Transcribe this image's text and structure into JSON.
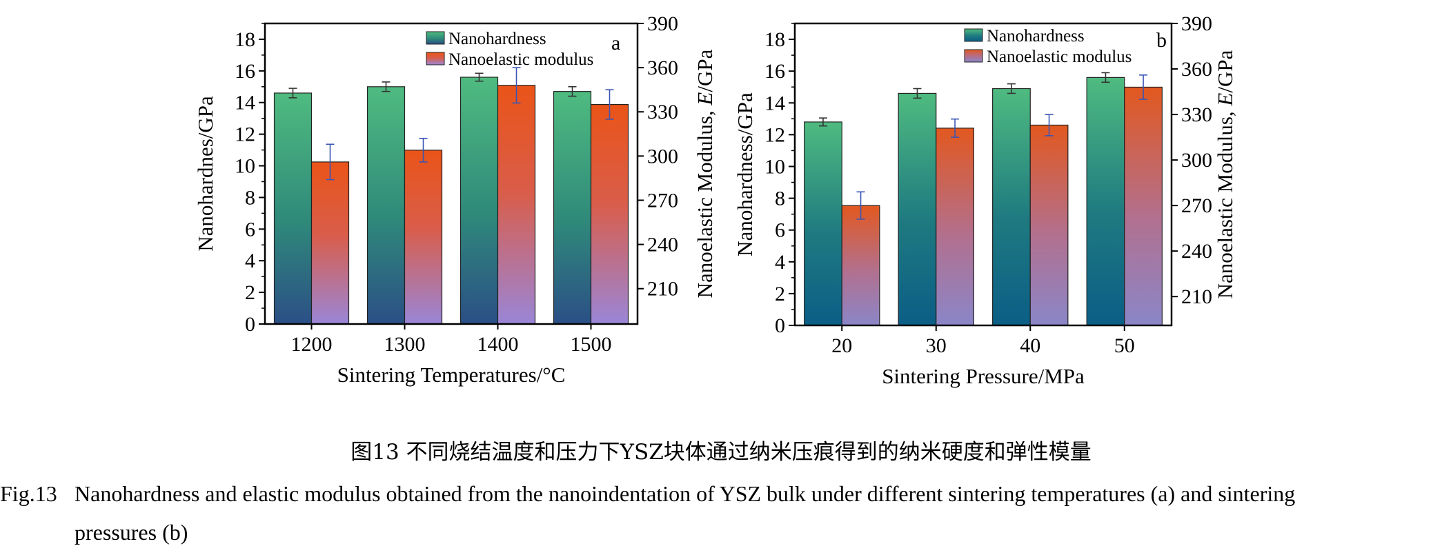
{
  "chart_data": [
    {
      "type": "bar",
      "panel_label": "a",
      "xlabel": "Sintering Temperatures/°C",
      "ylabel_left": "Nanohardnes/GPa",
      "ylabel_right": "Nanoelastic Modulus, E/GPa",
      "categories": [
        "1200",
        "1300",
        "1400",
        "1500"
      ],
      "ylim_left": [
        0,
        19
      ],
      "ylim_right": [
        186,
        390
      ],
      "left_ticks": [
        0,
        2,
        4,
        6,
        8,
        10,
        12,
        14,
        16,
        18
      ],
      "right_ticks": [
        210,
        240,
        270,
        300,
        330,
        360,
        390
      ],
      "series": [
        {
          "name": "Nanohardness",
          "axis": "left",
          "values": [
            14.6,
            15.0,
            15.6,
            14.7
          ],
          "errors": [
            0.3,
            0.3,
            0.25,
            0.3
          ]
        },
        {
          "name": "Nanoelastic modulus",
          "axis": "right",
          "values": [
            296,
            304,
            348,
            335
          ],
          "errors": [
            12,
            8,
            12,
            10
          ]
        }
      ],
      "legend_position": "top-right"
    },
    {
      "type": "bar",
      "panel_label": "b",
      "xlabel": "Sintering Pressure/MPa",
      "ylabel_left": "Nanohardness/GPa",
      "ylabel_right": "Nanoelastic Modulus, E/GPa",
      "categories": [
        "20",
        "30",
        "40",
        "50"
      ],
      "ylim_left": [
        0,
        19
      ],
      "ylim_right": [
        191,
        390
      ],
      "left_ticks": [
        0,
        2,
        4,
        6,
        8,
        10,
        12,
        14,
        16,
        18
      ],
      "right_ticks": [
        210,
        240,
        270,
        300,
        330,
        360,
        390
      ],
      "series": [
        {
          "name": "Nanohardness",
          "axis": "left",
          "values": [
            12.8,
            14.6,
            14.9,
            15.6
          ],
          "errors": [
            0.25,
            0.3,
            0.3,
            0.3
          ]
        },
        {
          "name": "Nanoelastic modulus",
          "axis": "right",
          "values": [
            270,
            321,
            323,
            348
          ],
          "errors": [
            9,
            6,
            7,
            8
          ]
        }
      ],
      "legend_position": "top-right"
    }
  ],
  "colors": {
    "hardness_top": "#4db87e",
    "hardness_bottom": "#2a5a84",
    "modulus_top": "#e8521c",
    "modulus_bottom": "#9b82d2",
    "error_bar": "#3a55b4"
  },
  "caption": {
    "chinese": "图13  不同烧结温度和压力下YSZ块体通过纳米压痕得到的纳米硬度和弹性模量",
    "english_label": "Fig.13",
    "english_line1": "Nanohardness and elastic modulus obtained from the nanoindentation of YSZ bulk under different sintering temperatures (a) and sintering",
    "english_line2": "pressures (b)"
  }
}
